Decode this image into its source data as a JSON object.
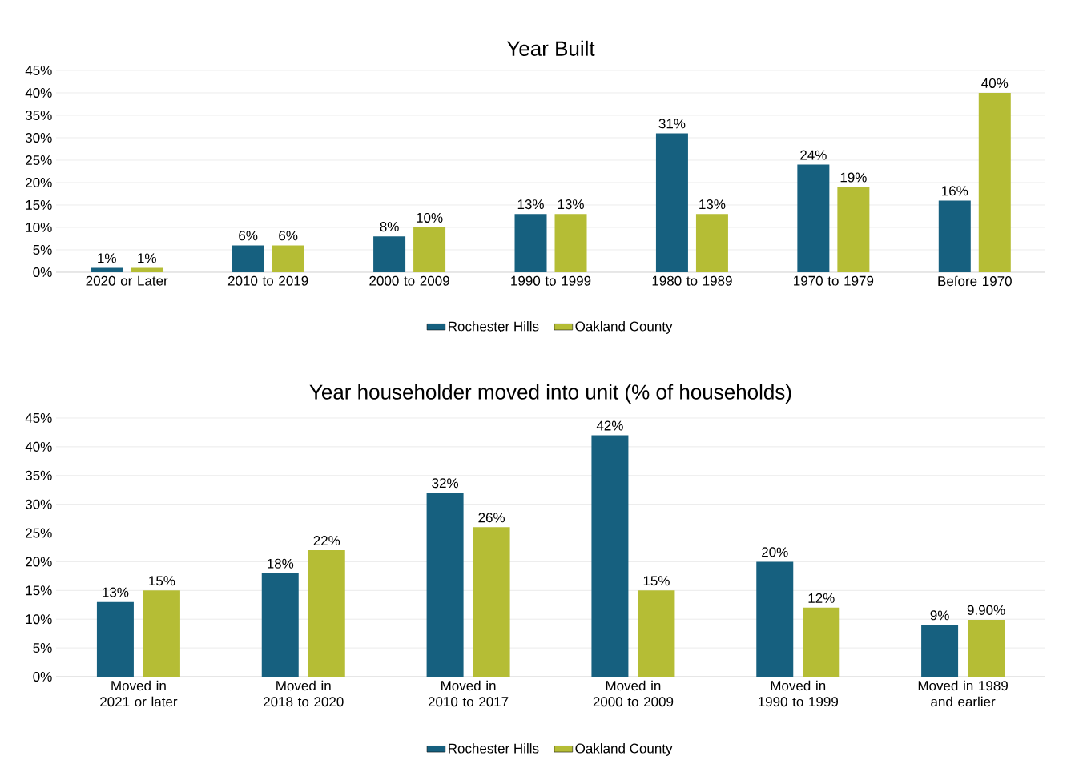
{
  "chart_data": [
    {
      "type": "bar",
      "title": "Year Built",
      "categories": [
        "2020 or Later",
        "2010 to 2019",
        "2000 to 2009",
        "1990 to 1999",
        "1980 to 1989",
        "1970 to 1979",
        "Before 1970"
      ],
      "series": [
        {
          "name": "Rochester Hills",
          "color": "#16607f",
          "values": [
            1,
            6,
            8,
            13,
            31,
            24,
            16
          ],
          "value_labels": [
            "1%",
            "6%",
            "8%",
            "13%",
            "31%",
            "24%",
            "16%"
          ]
        },
        {
          "name": "Oakland County",
          "color": "#b5bd35",
          "values": [
            1,
            6,
            10,
            13,
            13,
            19,
            40
          ],
          "value_labels": [
            "1%",
            "6%",
            "10%",
            "13%",
            "13%",
            "19%",
            "40%"
          ]
        }
      ],
      "ylim": [
        0,
        45
      ],
      "yticks": [
        {
          "value": 0,
          "label": "0%"
        },
        {
          "value": 5,
          "label": "5%"
        },
        {
          "value": 10,
          "label": "10%"
        },
        {
          "value": 15,
          "label": "15%"
        },
        {
          "value": 20,
          "label": "20%"
        },
        {
          "value": 25,
          "label": "25%"
        },
        {
          "value": 30,
          "label": "30%"
        },
        {
          "value": 35,
          "label": "35%"
        },
        {
          "value": 40,
          "label": "40%"
        },
        {
          "value": 45,
          "label": "45%"
        }
      ],
      "grid": "y",
      "legend": "bottom"
    },
    {
      "type": "bar",
      "title": "Year householder moved into unit (% of households)",
      "categories": [
        "Moved in 2021 or later",
        "Moved in 2018 to 2020",
        "Moved in 2010 to 2017",
        "Moved in 2000 to 2009",
        "Moved in 1990 to 1999",
        "Moved in 1989 and earlier"
      ],
      "series": [
        {
          "name": "Rochester Hills",
          "color": "#16607f",
          "values": [
            13,
            18,
            32,
            42,
            20,
            9
          ],
          "value_labels": [
            "13%",
            "18%",
            "32%",
            "42%",
            "20%",
            "9%"
          ]
        },
        {
          "name": "Oakland County",
          "color": "#b5bd35",
          "values": [
            15,
            22,
            26,
            15,
            12,
            9.9
          ],
          "value_labels": [
            "15%",
            "22%",
            "26%",
            "15%",
            "12%",
            "9.90%"
          ]
        }
      ],
      "ylim": [
        0,
        45
      ],
      "yticks": [
        {
          "value": 0,
          "label": "0%"
        },
        {
          "value": 5,
          "label": "5%"
        },
        {
          "value": 10,
          "label": "10%"
        },
        {
          "value": 15,
          "label": "15%"
        },
        {
          "value": 20,
          "label": "20%"
        },
        {
          "value": 25,
          "label": "25%"
        },
        {
          "value": 30,
          "label": "30%"
        },
        {
          "value": 35,
          "label": "35%"
        },
        {
          "value": 40,
          "label": "40%"
        },
        {
          "value": 45,
          "label": "45%"
        }
      ],
      "grid": "y",
      "legend": "bottom"
    }
  ]
}
